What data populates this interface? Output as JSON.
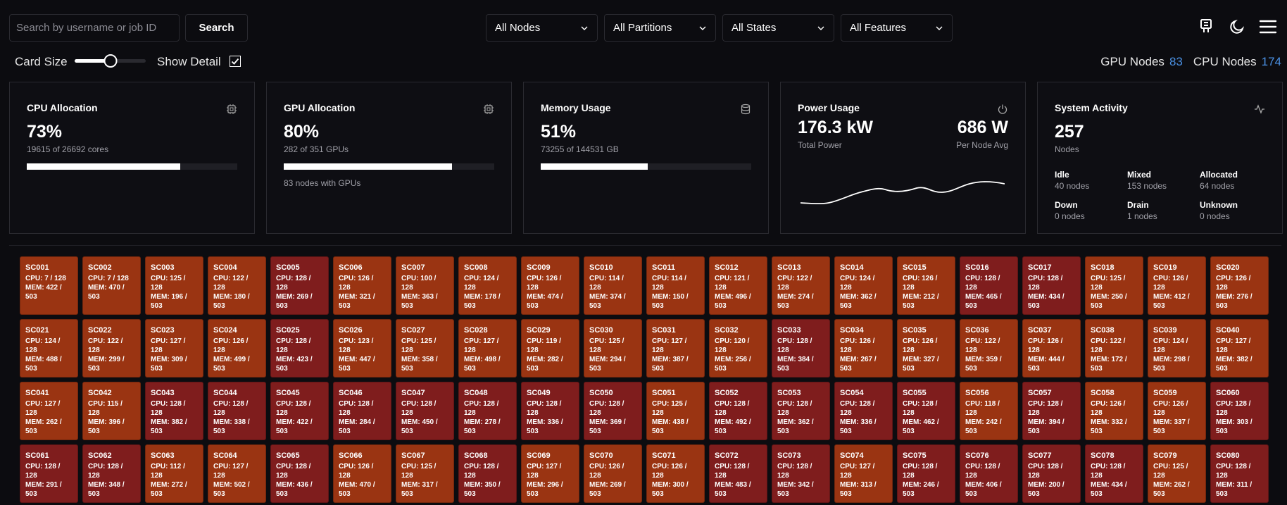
{
  "search": {
    "placeholder": "Search by username or job ID",
    "value": "",
    "button_label": "Search"
  },
  "filters": [
    {
      "label": "All Nodes"
    },
    {
      "label": "All Partitions"
    },
    {
      "label": "All States"
    },
    {
      "label": "All Features"
    }
  ],
  "top_icons": [
    "gpu-card-icon",
    "moon-icon",
    "menu-icon"
  ],
  "controls": {
    "card_size_label": "Card Size",
    "card_size_fraction": 0.5,
    "show_detail_label": "Show Detail",
    "show_detail_checked": true
  },
  "node_counts": {
    "gpu_label": "GPU Nodes",
    "gpu_value": "83",
    "cpu_label": "CPU Nodes",
    "cpu_value": "174"
  },
  "stats": {
    "cpu": {
      "title": "CPU Allocation",
      "value": "73%",
      "sub": "19615 of 26692 cores",
      "fraction": 0.73,
      "icon": "cpu-icon"
    },
    "gpu": {
      "title": "GPU Allocation",
      "value": "80%",
      "sub": "282 of 351 GPUs",
      "fraction": 0.8,
      "extra": "83 nodes with GPUs",
      "icon": "gpu-chip-icon"
    },
    "memory": {
      "title": "Memory Usage",
      "value": "51%",
      "sub": "73255 of 144531 GB",
      "fraction": 0.51,
      "icon": "database-icon"
    },
    "power": {
      "title": "Power Usage",
      "total": "176.3 kW",
      "total_label": "Total Power",
      "avg": "686 W",
      "avg_label": "Per Node Avg",
      "icon": "power-icon"
    },
    "activity": {
      "title": "System Activity",
      "value": "257",
      "sub": "Nodes",
      "icon": "activity-icon",
      "states": [
        {
          "label": "Idle",
          "value": "40 nodes"
        },
        {
          "label": "Mixed",
          "value": "153 nodes"
        },
        {
          "label": "Allocated",
          "value": "64 nodes"
        },
        {
          "label": "Down",
          "value": "0 nodes"
        },
        {
          "label": "Drain",
          "value": "1 nodes"
        },
        {
          "label": "Unknown",
          "value": "0 nodes"
        }
      ]
    }
  },
  "colors": {
    "mixed": "#9a3412",
    "allocated": "#7f1d1d",
    "accent": "#4a90e2"
  },
  "nodes": [
    {
      "name": "SC001",
      "cpu": "CPU: 7 / 128",
      "mem": "MEM: 422 / 503",
      "state": "mixed"
    },
    {
      "name": "SC002",
      "cpu": "CPU: 7 / 128",
      "mem": "MEM: 470 / 503",
      "state": "mixed"
    },
    {
      "name": "SC003",
      "cpu": "CPU: 125 / 128",
      "mem": "MEM: 196 / 503",
      "state": "mixed"
    },
    {
      "name": "SC004",
      "cpu": "CPU: 122 / 128",
      "mem": "MEM: 180 / 503",
      "state": "mixed"
    },
    {
      "name": "SC005",
      "cpu": "CPU: 128 / 128",
      "mem": "MEM: 269 / 503",
      "state": "allocated"
    },
    {
      "name": "SC006",
      "cpu": "CPU: 126 / 128",
      "mem": "MEM: 321 / 503",
      "state": "mixed"
    },
    {
      "name": "SC007",
      "cpu": "CPU: 100 / 128",
      "mem": "MEM: 363 / 503",
      "state": "mixed"
    },
    {
      "name": "SC008",
      "cpu": "CPU: 124 / 128",
      "mem": "MEM: 178 / 503",
      "state": "mixed"
    },
    {
      "name": "SC009",
      "cpu": "CPU: 126 / 128",
      "mem": "MEM: 474 / 503",
      "state": "mixed"
    },
    {
      "name": "SC010",
      "cpu": "CPU: 114 / 128",
      "mem": "MEM: 374 / 503",
      "state": "mixed"
    },
    {
      "name": "SC011",
      "cpu": "CPU: 114 / 128",
      "mem": "MEM: 150 / 503",
      "state": "mixed"
    },
    {
      "name": "SC012",
      "cpu": "CPU: 121 / 128",
      "mem": "MEM: 496 / 503",
      "state": "mixed"
    },
    {
      "name": "SC013",
      "cpu": "CPU: 122 / 128",
      "mem": "MEM: 274 / 503",
      "state": "mixed"
    },
    {
      "name": "SC014",
      "cpu": "CPU: 124 / 128",
      "mem": "MEM: 362 / 503",
      "state": "mixed"
    },
    {
      "name": "SC015",
      "cpu": "CPU: 126 / 128",
      "mem": "MEM: 212 / 503",
      "state": "mixed"
    },
    {
      "name": "SC016",
      "cpu": "CPU: 128 / 128",
      "mem": "MEM: 465 / 503",
      "state": "allocated"
    },
    {
      "name": "SC017",
      "cpu": "CPU: 128 / 128",
      "mem": "MEM: 434 / 503",
      "state": "allocated"
    },
    {
      "name": "SC018",
      "cpu": "CPU: 125 / 128",
      "mem": "MEM: 250 / 503",
      "state": "mixed"
    },
    {
      "name": "SC019",
      "cpu": "CPU: 126 / 128",
      "mem": "MEM: 412 / 503",
      "state": "mixed"
    },
    {
      "name": "SC020",
      "cpu": "CPU: 126 / 128",
      "mem": "MEM: 276 / 503",
      "state": "mixed"
    },
    {
      "name": "SC021",
      "cpu": "CPU: 124 / 128",
      "mem": "MEM: 488 / 503",
      "state": "mixed"
    },
    {
      "name": "SC022",
      "cpu": "CPU: 122 / 128",
      "mem": "MEM: 299 / 503",
      "state": "mixed"
    },
    {
      "name": "SC023",
      "cpu": "CPU: 127 / 128",
      "mem": "MEM: 309 / 503",
      "state": "mixed"
    },
    {
      "name": "SC024",
      "cpu": "CPU: 126 / 128",
      "mem": "MEM: 499 / 503",
      "state": "mixed"
    },
    {
      "name": "SC025",
      "cpu": "CPU: 128 / 128",
      "mem": "MEM: 423 / 503",
      "state": "allocated"
    },
    {
      "name": "SC026",
      "cpu": "CPU: 123 / 128",
      "mem": "MEM: 447 / 503",
      "state": "mixed"
    },
    {
      "name": "SC027",
      "cpu": "CPU: 125 / 128",
      "mem": "MEM: 358 / 503",
      "state": "mixed"
    },
    {
      "name": "SC028",
      "cpu": "CPU: 127 / 128",
      "mem": "MEM: 498 / 503",
      "state": "mixed"
    },
    {
      "name": "SC029",
      "cpu": "CPU: 119 / 128",
      "mem": "MEM: 282 / 503",
      "state": "mixed"
    },
    {
      "name": "SC030",
      "cpu": "CPU: 125 / 128",
      "mem": "MEM: 294 / 503",
      "state": "mixed"
    },
    {
      "name": "SC031",
      "cpu": "CPU: 127 / 128",
      "mem": "MEM: 387 / 503",
      "state": "mixed"
    },
    {
      "name": "SC032",
      "cpu": "CPU: 120 / 128",
      "mem": "MEM: 256 / 503",
      "state": "mixed"
    },
    {
      "name": "SC033",
      "cpu": "CPU: 128 / 128",
      "mem": "MEM: 384 / 503",
      "state": "allocated"
    },
    {
      "name": "SC034",
      "cpu": "CPU: 126 / 128",
      "mem": "MEM: 267 / 503",
      "state": "mixed"
    },
    {
      "name": "SC035",
      "cpu": "CPU: 126 / 128",
      "mem": "MEM: 327 / 503",
      "state": "mixed"
    },
    {
      "name": "SC036",
      "cpu": "CPU: 122 / 128",
      "mem": "MEM: 359 / 503",
      "state": "mixed"
    },
    {
      "name": "SC037",
      "cpu": "CPU: 126 / 128",
      "mem": "MEM: 444 / 503",
      "state": "mixed"
    },
    {
      "name": "SC038",
      "cpu": "CPU: 122 / 128",
      "mem": "MEM: 172 / 503",
      "state": "mixed"
    },
    {
      "name": "SC039",
      "cpu": "CPU: 124 / 128",
      "mem": "MEM: 298 / 503",
      "state": "mixed"
    },
    {
      "name": "SC040",
      "cpu": "CPU: 127 / 128",
      "mem": "MEM: 382 / 503",
      "state": "mixed"
    },
    {
      "name": "SC041",
      "cpu": "CPU: 127 / 128",
      "mem": "MEM: 262 / 503",
      "state": "mixed"
    },
    {
      "name": "SC042",
      "cpu": "CPU: 115 / 128",
      "mem": "MEM: 396 / 503",
      "state": "mixed"
    },
    {
      "name": "SC043",
      "cpu": "CPU: 128 / 128",
      "mem": "MEM: 382 / 503",
      "state": "allocated"
    },
    {
      "name": "SC044",
      "cpu": "CPU: 128 / 128",
      "mem": "MEM: 338 / 503",
      "state": "allocated"
    },
    {
      "name": "SC045",
      "cpu": "CPU: 128 / 128",
      "mem": "MEM: 422 / 503",
      "state": "allocated"
    },
    {
      "name": "SC046",
      "cpu": "CPU: 128 / 128",
      "mem": "MEM: 284 / 503",
      "state": "allocated"
    },
    {
      "name": "SC047",
      "cpu": "CPU: 128 / 128",
      "mem": "MEM: 450 / 503",
      "state": "allocated"
    },
    {
      "name": "SC048",
      "cpu": "CPU: 128 / 128",
      "mem": "MEM: 278 / 503",
      "state": "allocated"
    },
    {
      "name": "SC049",
      "cpu": "CPU: 128 / 128",
      "mem": "MEM: 336 / 503",
      "state": "allocated"
    },
    {
      "name": "SC050",
      "cpu": "CPU: 128 / 128",
      "mem": "MEM: 369 / 503",
      "state": "allocated"
    },
    {
      "name": "SC051",
      "cpu": "CPU: 125 / 128",
      "mem": "MEM: 438 / 503",
      "state": "mixed"
    },
    {
      "name": "SC052",
      "cpu": "CPU: 128 / 128",
      "mem": "MEM: 492 / 503",
      "state": "allocated"
    },
    {
      "name": "SC053",
      "cpu": "CPU: 128 / 128",
      "mem": "MEM: 362 / 503",
      "state": "allocated"
    },
    {
      "name": "SC054",
      "cpu": "CPU: 128 / 128",
      "mem": "MEM: 336 / 503",
      "state": "allocated"
    },
    {
      "name": "SC055",
      "cpu": "CPU: 128 / 128",
      "mem": "MEM: 462 / 503",
      "state": "allocated"
    },
    {
      "name": "SC056",
      "cpu": "CPU: 118 / 128",
      "mem": "MEM: 242 / 503",
      "state": "mixed"
    },
    {
      "name": "SC057",
      "cpu": "CPU: 128 / 128",
      "mem": "MEM: 394 / 503",
      "state": "allocated"
    },
    {
      "name": "SC058",
      "cpu": "CPU: 126 / 128",
      "mem": "MEM: 332 / 503",
      "state": "mixed"
    },
    {
      "name": "SC059",
      "cpu": "CPU: 126 / 128",
      "mem": "MEM: 337 / 503",
      "state": "mixed"
    },
    {
      "name": "SC060",
      "cpu": "CPU: 128 / 128",
      "mem": "MEM: 303 / 503",
      "state": "allocated"
    },
    {
      "name": "SC061",
      "cpu": "CPU: 128 / 128",
      "mem": "MEM: 291 / 503",
      "state": "allocated"
    },
    {
      "name": "SC062",
      "cpu": "CPU: 128 / 128",
      "mem": "MEM: 348 / 503",
      "state": "allocated"
    },
    {
      "name": "SC063",
      "cpu": "CPU: 112 / 128",
      "mem": "MEM: 272 / 503",
      "state": "mixed"
    },
    {
      "name": "SC064",
      "cpu": "CPU: 127 / 128",
      "mem": "MEM: 502 / 503",
      "state": "mixed"
    },
    {
      "name": "SC065",
      "cpu": "CPU: 128 / 128",
      "mem": "MEM: 436 / 503",
      "state": "allocated"
    },
    {
      "name": "SC066",
      "cpu": "CPU: 126 / 128",
      "mem": "MEM: 470 / 503",
      "state": "mixed"
    },
    {
      "name": "SC067",
      "cpu": "CPU: 125 / 128",
      "mem": "MEM: 317 / 503",
      "state": "mixed"
    },
    {
      "name": "SC068",
      "cpu": "CPU: 128 / 128",
      "mem": "MEM: 350 / 503",
      "state": "allocated"
    },
    {
      "name": "SC069",
      "cpu": "CPU: 127 / 128",
      "mem": "MEM: 296 / 503",
      "state": "mixed"
    },
    {
      "name": "SC070",
      "cpu": "CPU: 126 / 128",
      "mem": "MEM: 269 / 503",
      "state": "mixed"
    },
    {
      "name": "SC071",
      "cpu": "CPU: 126 / 128",
      "mem": "MEM: 300 / 503",
      "state": "mixed"
    },
    {
      "name": "SC072",
      "cpu": "CPU: 128 / 128",
      "mem": "MEM: 483 / 503",
      "state": "allocated"
    },
    {
      "name": "SC073",
      "cpu": "CPU: 128 / 128",
      "mem": "MEM: 342 / 503",
      "state": "allocated"
    },
    {
      "name": "SC074",
      "cpu": "CPU: 127 / 128",
      "mem": "MEM: 313 / 503",
      "state": "mixed"
    },
    {
      "name": "SC075",
      "cpu": "CPU: 128 / 128",
      "mem": "MEM: 246 / 503",
      "state": "allocated"
    },
    {
      "name": "SC076",
      "cpu": "CPU: 128 / 128",
      "mem": "MEM: 406 / 503",
      "state": "allocated"
    },
    {
      "name": "SC077",
      "cpu": "CPU: 128 / 128",
      "mem": "MEM: 200 / 503",
      "state": "allocated"
    },
    {
      "name": "SC078",
      "cpu": "CPU: 128 / 128",
      "mem": "MEM: 434 / 503",
      "state": "allocated"
    },
    {
      "name": "SC079",
      "cpu": "CPU: 125 / 128",
      "mem": "MEM: 262 / 503",
      "state": "mixed"
    },
    {
      "name": "SC080",
      "cpu": "CPU: 128 / 128",
      "mem": "MEM: 311 / 503",
      "state": "allocated"
    }
  ]
}
